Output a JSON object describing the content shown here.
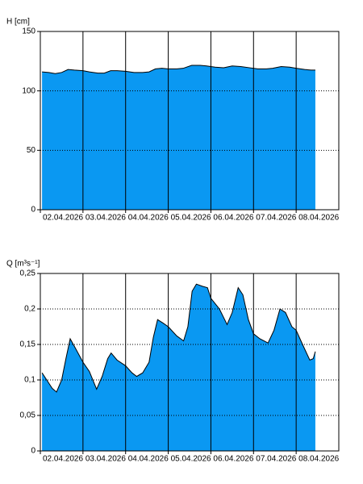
{
  "chart_data": [
    {
      "type": "area",
      "ylabel": "H [cm]",
      "color": "#0a98f2",
      "grid": true,
      "x": [
        2.04,
        2.2,
        2.35,
        2.5,
        2.65,
        2.8,
        3.0,
        3.15,
        3.35,
        3.5,
        3.65,
        3.8,
        4.0,
        4.2,
        4.4,
        4.55,
        4.7,
        4.85,
        5.0,
        5.2,
        5.35,
        5.55,
        5.75,
        5.9,
        6.1,
        6.3,
        6.5,
        6.7,
        6.9,
        7.1,
        7.3,
        7.45,
        7.65,
        7.85,
        8.0,
        8.2,
        8.35,
        8.45
      ],
      "values": [
        116,
        115.5,
        114.5,
        115.5,
        118,
        117.5,
        117,
        116,
        115,
        115,
        117,
        117,
        116.5,
        115.5,
        115.5,
        116,
        118.5,
        119,
        118.5,
        118.5,
        119,
        121.5,
        121.5,
        121,
        120,
        119.5,
        121,
        120.5,
        119.5,
        118.5,
        118.5,
        119,
        120.5,
        120,
        119,
        118,
        117.5,
        117.5
      ],
      "xlim": [
        2,
        9
      ],
      "xticks": [
        {
          "value": 2,
          "label": "02.04.2026"
        },
        {
          "value": 3,
          "label": "03.04.2026"
        },
        {
          "value": 4,
          "label": "04.04.2026"
        },
        {
          "value": 5,
          "label": "05.04.2026"
        },
        {
          "value": 6,
          "label": "06.04.2026"
        },
        {
          "value": 7,
          "label": "07.04.2026"
        },
        {
          "value": 8,
          "label": "08.04.2026"
        }
      ],
      "ylim": [
        0,
        150
      ],
      "yticks": [
        0,
        50,
        100,
        150
      ]
    },
    {
      "type": "area",
      "ylabel": "Q [m³s⁻¹]",
      "color": "#0a98f2",
      "grid": true,
      "x": [
        2.04,
        2.15,
        2.28,
        2.38,
        2.5,
        2.6,
        2.7,
        2.82,
        3.0,
        3.15,
        3.32,
        3.45,
        3.58,
        3.66,
        3.8,
        4.0,
        4.15,
        4.26,
        4.4,
        4.55,
        4.65,
        4.75,
        4.88,
        5.0,
        5.2,
        5.36,
        5.46,
        5.56,
        5.66,
        5.8,
        5.92,
        6.0,
        6.2,
        6.38,
        6.5,
        6.64,
        6.75,
        6.88,
        7.0,
        7.15,
        7.34,
        7.48,
        7.62,
        7.75,
        7.9,
        8.0,
        8.15,
        8.32,
        8.4,
        8.45
      ],
      "values": [
        0.11,
        0.1,
        0.088,
        0.083,
        0.1,
        0.13,
        0.158,
        0.145,
        0.125,
        0.112,
        0.087,
        0.105,
        0.13,
        0.138,
        0.128,
        0.12,
        0.11,
        0.105,
        0.11,
        0.125,
        0.16,
        0.185,
        0.18,
        0.175,
        0.162,
        0.155,
        0.175,
        0.225,
        0.235,
        0.232,
        0.23,
        0.215,
        0.2,
        0.178,
        0.195,
        0.23,
        0.22,
        0.185,
        0.165,
        0.158,
        0.152,
        0.17,
        0.2,
        0.195,
        0.175,
        0.17,
        0.15,
        0.128,
        0.13,
        0.14
      ],
      "xlim": [
        2,
        9
      ],
      "xticks": [
        {
          "value": 2,
          "label": "02.04.2026"
        },
        {
          "value": 3,
          "label": "03.04.2026"
        },
        {
          "value": 4,
          "label": "04.04.2026"
        },
        {
          "value": 5,
          "label": "05.04.2026"
        },
        {
          "value": 6,
          "label": "06.04.2026"
        },
        {
          "value": 7,
          "label": "07.04.2026"
        },
        {
          "value": 8,
          "label": "08.04.2026"
        }
      ],
      "ylim": [
        0,
        0.25
      ],
      "yticks": [
        0,
        {
          "value": 0.05,
          "label": "0,05"
        },
        {
          "value": 0.1,
          "label": "0,1"
        },
        {
          "value": 0.15,
          "label": "0,15"
        },
        {
          "value": 0.2,
          "label": "0,2"
        },
        {
          "value": 0.25,
          "label": "0,25"
        }
      ]
    }
  ]
}
